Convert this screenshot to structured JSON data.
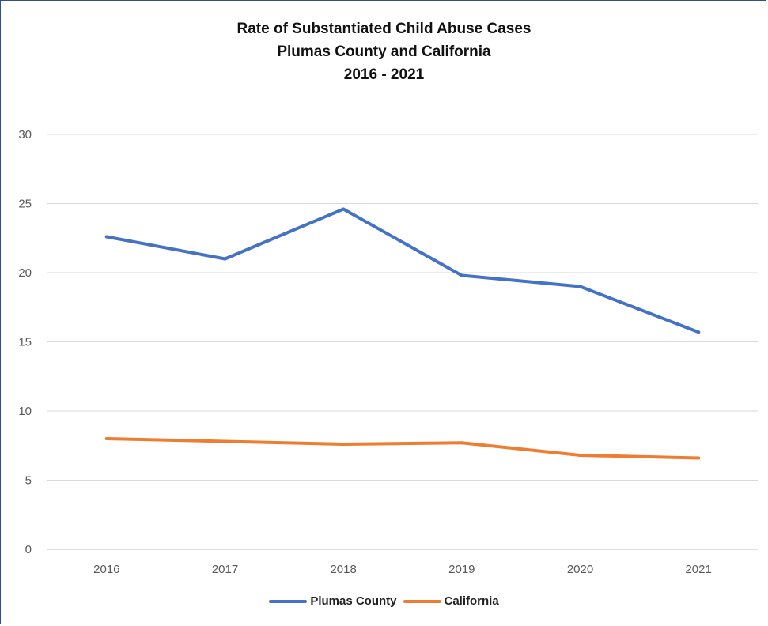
{
  "chart_data": {
    "type": "line",
    "title_lines": [
      "Rate of Substantiated Child Abuse Cases",
      "Plumas County and California",
      "2016 - 2021"
    ],
    "categories": [
      "2016",
      "2017",
      "2018",
      "2019",
      "2020",
      "2021"
    ],
    "series": [
      {
        "name": "Plumas County",
        "color": "#4472c4",
        "values": [
          22.6,
          21.0,
          24.6,
          19.8,
          19.0,
          15.7
        ]
      },
      {
        "name": "California",
        "color": "#ed7d31",
        "values": [
          8.0,
          7.8,
          7.6,
          7.7,
          6.8,
          6.6
        ]
      }
    ],
    "yticks": [
      0,
      5,
      10,
      15,
      20,
      25,
      30
    ],
    "ylim": [
      0,
      30
    ],
    "grid": true,
    "legend_position": "bottom"
  }
}
